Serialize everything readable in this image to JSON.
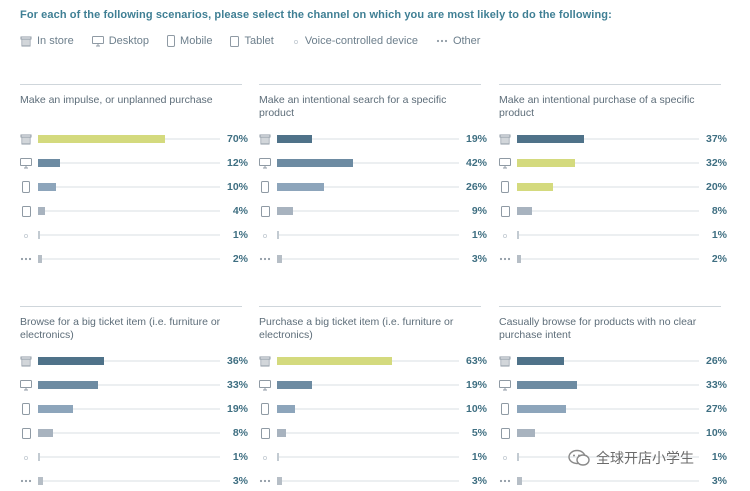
{
  "title": "For each of the following scenarios, please select the channel on which you are most likely to do the following:",
  "legend": [
    {
      "label": "In store",
      "icon": "store-icon"
    },
    {
      "label": "Desktop",
      "icon": "desktop-icon"
    },
    {
      "label": "Mobile",
      "icon": "mobile-icon"
    },
    {
      "label": "Tablet",
      "icon": "tablet-icon"
    },
    {
      "label": "Voice-controlled device",
      "icon": "voice-icon"
    },
    {
      "label": "Other",
      "icon": "other-icon"
    }
  ],
  "colors": {
    "highlight": "#d4da7e",
    "in_store": "#4f7289",
    "desktop": "#6d8ba2",
    "mobile": "#8da5bb",
    "tablet": "#a8b3bf",
    "voice": "#c3cbd2",
    "other": "#b6bec6"
  },
  "watermark": "全球开店小学生",
  "chart_data": [
    {
      "type": "bar",
      "title": "Make an impulse, or unplanned purchase",
      "categories": [
        "In store",
        "Desktop",
        "Mobile",
        "Tablet",
        "Voice-controlled device",
        "Other"
      ],
      "values": [
        70,
        12,
        10,
        4,
        1,
        2
      ],
      "labels": [
        "70%",
        "12%",
        "10%",
        "4%",
        "1%",
        "2%"
      ],
      "highlighted": [
        0
      ],
      "unit": "%"
    },
    {
      "type": "bar",
      "title": "Make an intentional search for a specific product",
      "categories": [
        "In store",
        "Desktop",
        "Mobile",
        "Tablet",
        "Voice-controlled device",
        "Other"
      ],
      "values": [
        19,
        42,
        26,
        9,
        1,
        3
      ],
      "labels": [
        "19%",
        "42%",
        "26%",
        "9%",
        "1%",
        "3%"
      ],
      "highlighted": [],
      "unit": "%"
    },
    {
      "type": "bar",
      "title": "Make an intentional purchase of a specific product",
      "categories": [
        "In store",
        "Desktop",
        "Mobile",
        "Tablet",
        "Voice-controlled device",
        "Other"
      ],
      "values": [
        37,
        32,
        20,
        8,
        1,
        2
      ],
      "labels": [
        "37%",
        "32%",
        "20%",
        "8%",
        "1%",
        "2%"
      ],
      "highlighted": [
        1,
        2
      ],
      "unit": "%"
    },
    {
      "type": "bar",
      "title": "Browse for a big ticket item (i.e. furniture or electronics)",
      "categories": [
        "In store",
        "Desktop",
        "Mobile",
        "Tablet",
        "Voice-controlled device",
        "Other"
      ],
      "values": [
        36,
        33,
        19,
        8,
        1,
        3
      ],
      "labels": [
        "36%",
        "33%",
        "19%",
        "8%",
        "1%",
        "3%"
      ],
      "highlighted": [],
      "unit": "%"
    },
    {
      "type": "bar",
      "title": "Purchase a big ticket item (i.e. furniture or electronics)",
      "categories": [
        "In store",
        "Desktop",
        "Mobile",
        "Tablet",
        "Voice-controlled device",
        "Other"
      ],
      "values": [
        63,
        19,
        10,
        5,
        1,
        3
      ],
      "labels": [
        "63%",
        "19%",
        "10%",
        "5%",
        "1%",
        "3%"
      ],
      "highlighted": [
        0
      ],
      "unit": "%"
    },
    {
      "type": "bar",
      "title": "Casually browse for products with no clear purchase intent",
      "categories": [
        "In store",
        "Desktop",
        "Mobile",
        "Tablet",
        "Voice-controlled device",
        "Other"
      ],
      "values": [
        26,
        33,
        27,
        10,
        1,
        3
      ],
      "labels": [
        "26%",
        "33%",
        "27%",
        "10%",
        "1%",
        "3%"
      ],
      "highlighted": [],
      "unit": "%"
    }
  ]
}
